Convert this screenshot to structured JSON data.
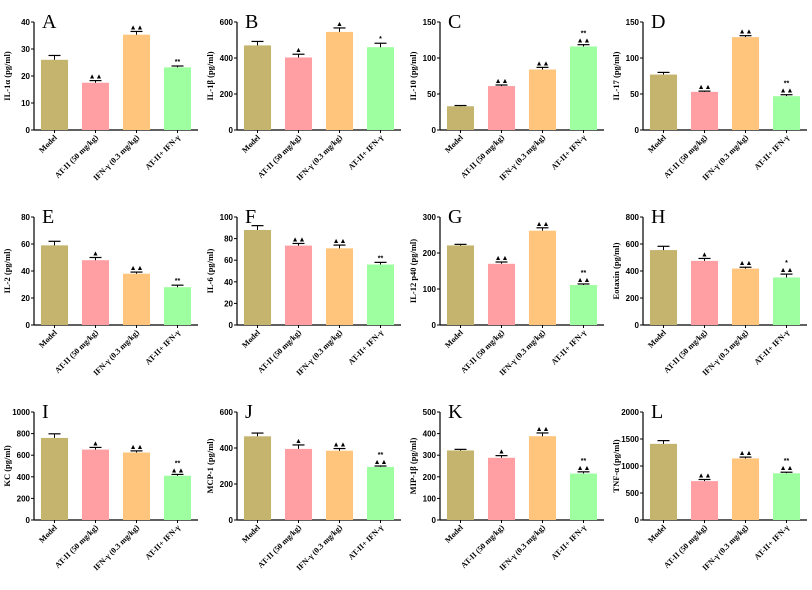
{
  "figure": {
    "colors": [
      "#c4b46e",
      "#ff9ea3",
      "#ffc57d",
      "#9effa0"
    ],
    "categories": [
      "Model",
      "AT-II (50 mg/kg)",
      "IFN-γ (0.3 mg/kg)",
      "AT-II+ IFN-γ"
    ]
  },
  "chart_data": [
    {
      "panel": "A",
      "type": "bar",
      "ylabel": "IL-1α  (pg/ml)",
      "ylim": [
        0,
        40
      ],
      "yticks": [
        0,
        10,
        20,
        30,
        40
      ],
      "categories": [
        "Model",
        "AT-II (50 mg/kg)",
        "IFN-γ (0.3 mg/kg)",
        "AT-II+ IFN-γ"
      ],
      "values": [
        26,
        17.5,
        35.3,
        23.2
      ],
      "errors": [
        1.6,
        0.8,
        1.2,
        0.5
      ],
      "annotations": [
        [],
        [
          "▲▲"
        ],
        [
          "▲▲"
        ],
        [
          "**"
        ]
      ]
    },
    {
      "panel": "B",
      "type": "bar",
      "ylabel": "IL-1β  (pg/ml)",
      "ylim": [
        0,
        600
      ],
      "yticks": [
        0,
        200,
        400,
        600
      ],
      "categories": [
        "Model",
        "AT-II (50 mg/kg)",
        "IFN-γ (0.3 mg/kg)",
        "AT-II+ IFN-γ"
      ],
      "values": [
        470,
        403,
        545,
        460
      ],
      "errors": [
        22,
        18,
        22,
        22
      ],
      "annotations": [
        [],
        [
          "▲"
        ],
        [
          "▲"
        ],
        [
          "*"
        ]
      ]
    },
    {
      "panel": "C",
      "type": "bar",
      "ylabel": "IL-10 (pg/ml)",
      "ylim": [
        0,
        150
      ],
      "yticks": [
        0,
        50,
        100,
        150
      ],
      "categories": [
        "Model",
        "AT-II (50 mg/kg)",
        "IFN-γ (0.3 mg/kg)",
        "AT-II+ IFN-γ"
      ],
      "values": [
        33,
        61,
        84,
        116
      ],
      "errors": [
        1,
        1.5,
        3,
        2.5
      ],
      "annotations": [
        [],
        [
          "▲▲"
        ],
        [
          "▲▲"
        ],
        [
          "▲▲",
          "**"
        ]
      ]
    },
    {
      "panel": "D",
      "type": "bar",
      "ylabel": "IL-17 (pg/ml)",
      "ylim": [
        0,
        150
      ],
      "yticks": [
        0,
        50,
        100,
        150
      ],
      "categories": [
        "Model",
        "AT-II (50 mg/kg)",
        "IFN-γ (0.3 mg/kg)",
        "AT-II+ IFN-γ"
      ],
      "values": [
        77,
        53,
        129,
        47
      ],
      "errors": [
        3,
        1,
        2,
        2
      ],
      "annotations": [
        [],
        [
          "▲▲"
        ],
        [
          "▲▲"
        ],
        [
          "▲▲",
          "**"
        ]
      ]
    },
    {
      "panel": "E",
      "type": "bar",
      "ylabel": "IL-2 (pg/ml)",
      "ylim": [
        0,
        80
      ],
      "yticks": [
        0,
        20,
        40,
        60,
        80
      ],
      "categories": [
        "Model",
        "AT-II (50 mg/kg)",
        "IFN-γ (0.3 mg/kg)",
        "AT-II+ IFN-γ"
      ],
      "values": [
        59,
        48,
        38,
        28
      ],
      "errors": [
        3,
        2,
        1.2,
        1.5
      ],
      "annotations": [
        [],
        [
          "▲"
        ],
        [
          "▲▲"
        ],
        [
          "**"
        ]
      ]
    },
    {
      "panel": "F",
      "type": "bar",
      "ylabel": "IL-6 (pg/ml)",
      "ylim": [
        0,
        100
      ],
      "yticks": [
        0,
        20,
        40,
        60,
        80,
        100
      ],
      "categories": [
        "Model",
        "AT-II (50 mg/kg)",
        "IFN-γ (0.3 mg/kg)",
        "AT-II+ IFN-γ"
      ],
      "values": [
        88,
        73.5,
        71,
        56
      ],
      "errors": [
        4,
        2,
        3,
        2
      ],
      "annotations": [
        [],
        [
          "▲▲"
        ],
        [
          "▲▲"
        ],
        [
          "**"
        ]
      ]
    },
    {
      "panel": "G",
      "type": "bar",
      "ylabel": "IL-12 p40 (pg/ml)",
      "ylim": [
        0,
        300
      ],
      "yticks": [
        0,
        100,
        200,
        300
      ],
      "categories": [
        "Model",
        "AT-II (50 mg/kg)",
        "IFN-γ (0.3 mg/kg)",
        "AT-II+ IFN-γ"
      ],
      "values": [
        221,
        170,
        262,
        111
      ],
      "errors": [
        3,
        5,
        8,
        3
      ],
      "annotations": [
        [],
        [
          "▲▲"
        ],
        [
          "▲▲"
        ],
        [
          "▲▲",
          "**"
        ]
      ]
    },
    {
      "panel": "H",
      "type": "bar",
      "ylabel": "Eotaxin (pg/ml)",
      "ylim": [
        0,
        800
      ],
      "yticks": [
        0,
        200,
        400,
        600,
        800
      ],
      "categories": [
        "Model",
        "AT-II (50 mg/kg)",
        "IFN-γ (0.3 mg/kg)",
        "AT-II+ IFN-γ"
      ],
      "values": [
        555,
        475,
        418,
        352
      ],
      "errors": [
        28,
        18,
        10,
        25
      ],
      "annotations": [
        [],
        [
          "▲"
        ],
        [
          "▲▲"
        ],
        [
          "▲▲",
          "*"
        ]
      ]
    },
    {
      "panel": "I",
      "type": "bar",
      "ylabel": "KC (pg/ml)",
      "ylim": [
        0,
        1000
      ],
      "yticks": [
        0,
        200,
        400,
        600,
        800,
        1000
      ],
      "categories": [
        "Model",
        "AT-II (50 mg/kg)",
        "IFN-γ (0.3 mg/kg)",
        "AT-II+ IFN-γ"
      ],
      "values": [
        760,
        652,
        625,
        410
      ],
      "errors": [
        38,
        20,
        15,
        12
      ],
      "annotations": [
        [],
        [
          "▲"
        ],
        [
          "▲▲"
        ],
        [
          "▲▲",
          "**"
        ]
      ]
    },
    {
      "panel": "J",
      "type": "bar",
      "ylabel": "MCP-1 (pg/ml)",
      "ylim": [
        0,
        600
      ],
      "yticks": [
        0,
        200,
        400,
        600
      ],
      "categories": [
        "Model",
        "AT-II (50 mg/kg)",
        "IFN-γ (0.3 mg/kg)",
        "AT-II+ IFN-γ"
      ],
      "values": [
        465,
        395,
        385,
        295
      ],
      "errors": [
        18,
        22,
        12,
        5
      ],
      "annotations": [
        [],
        [
          "▲"
        ],
        [
          "▲▲"
        ],
        [
          "▲▲",
          "**"
        ]
      ]
    },
    {
      "panel": "K",
      "type": "bar",
      "ylabel": "MIP-1β  (pg/ml)",
      "ylim": [
        0,
        500
      ],
      "yticks": [
        0,
        100,
        200,
        300,
        400,
        500
      ],
      "categories": [
        "Model",
        "AT-II (50 mg/kg)",
        "IFN-γ (0.3 mg/kg)",
        "AT-II+ IFN-γ"
      ],
      "values": [
        322,
        288,
        388,
        215
      ],
      "errors": [
        5,
        10,
        15,
        8
      ],
      "annotations": [
        [],
        [
          "▲"
        ],
        [
          "▲▲"
        ],
        [
          "▲▲",
          "**"
        ]
      ]
    },
    {
      "panel": "L",
      "type": "bar",
      "ylabel": "TNF-α  (pg/ml)",
      "ylim": [
        0,
        2000
      ],
      "yticks": [
        0,
        500,
        1000,
        1500,
        2000
      ],
      "categories": [
        "Model",
        "AT-II (50 mg/kg)",
        "IFN-γ (0.3 mg/kg)",
        "AT-II+ IFN-γ"
      ],
      "values": [
        1410,
        720,
        1140,
        865
      ],
      "errors": [
        60,
        30,
        25,
        20
      ],
      "annotations": [
        [],
        [
          "▲▲"
        ],
        [
          "▲▲"
        ],
        [
          "▲▲",
          "**"
        ]
      ]
    }
  ]
}
